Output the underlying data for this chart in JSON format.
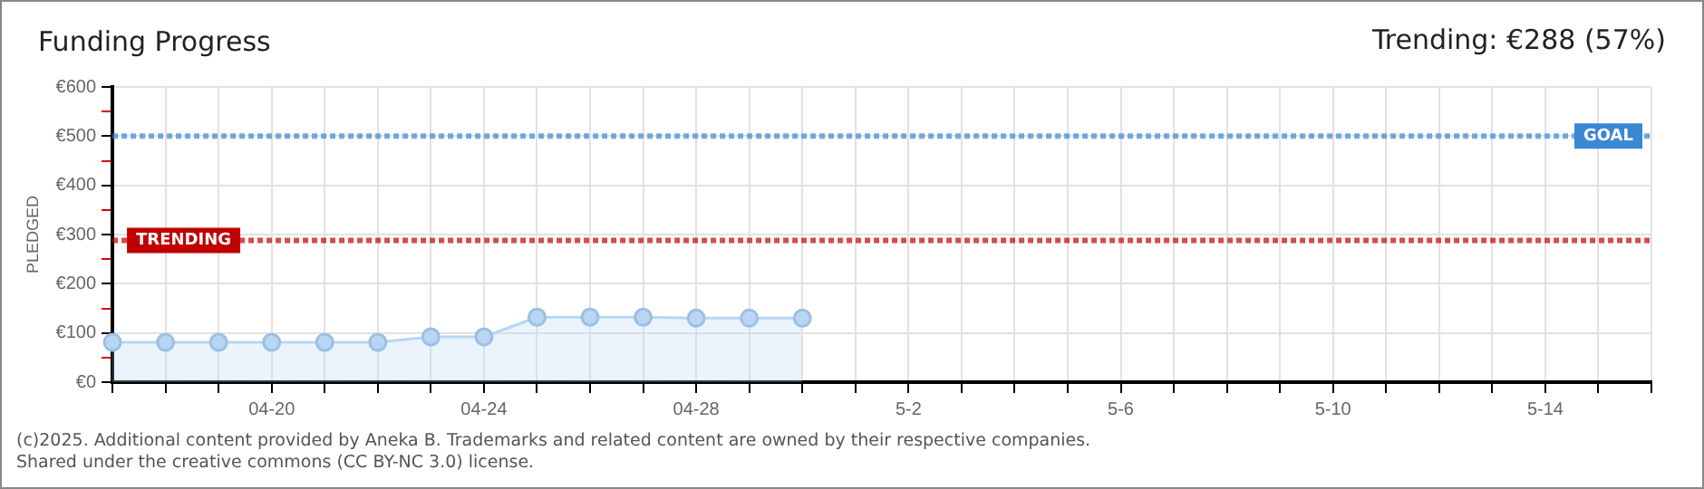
{
  "chart_data": {
    "type": "area",
    "title": "Funding Progress",
    "subtitle": "Trending: €288 (57%)",
    "ylabel": "PLEDGED",
    "categories": [
      null,
      null,
      null,
      "04-20",
      null,
      null,
      null,
      "04-24",
      null,
      null,
      null,
      "04-28",
      null,
      null,
      null,
      "5-2",
      null,
      null,
      null,
      "5-6",
      null,
      null,
      null,
      "5-10",
      null,
      null,
      null,
      "5-14",
      null,
      null
    ],
    "series": [
      {
        "color": "#b8d6f4",
        "values": [
          81,
          81,
          81,
          81,
          81,
          81,
          92,
          92,
          132,
          132,
          132,
          130,
          130,
          130,
          null,
          null,
          null,
          null,
          null,
          null,
          null,
          null,
          null,
          null,
          null,
          null,
          null,
          null,
          null,
          null
        ]
      }
    ],
    "ylim": [
      0,
      600
    ],
    "yticks": [
      {
        "value": 0,
        "label": "€0"
      },
      {
        "value": 50,
        "label": null
      },
      {
        "value": 100,
        "label": "€100"
      },
      {
        "value": 150,
        "label": null
      },
      {
        "value": 200,
        "label": "€200"
      },
      {
        "value": 250,
        "label": null
      },
      {
        "value": 300,
        "label": "€300"
      },
      {
        "value": 350,
        "label": null
      },
      {
        "value": 400,
        "label": "€400"
      },
      {
        "value": 450,
        "label": null
      },
      {
        "value": 500,
        "label": "€500"
      },
      {
        "value": 550,
        "label": null
      },
      {
        "value": 600,
        "label": "€600"
      }
    ],
    "ref_lines": [
      {
        "axis": "y",
        "value": 500,
        "label": "GOAL",
        "color": "#3a87d4",
        "line_style": "dotted"
      },
      {
        "axis": "y",
        "value": 288,
        "label": "TRENDING",
        "color": "#c00000",
        "line_style": "dotted"
      }
    ],
    "grid": true,
    "marker": "circle",
    "legend": false,
    "annotations": [
      "(c)2025. Additional content provided by Aneka B. Trademarks and related content are owned by their respective companies.",
      "Shared under the creative commons (CC BY-NC 3.0) license."
    ]
  }
}
